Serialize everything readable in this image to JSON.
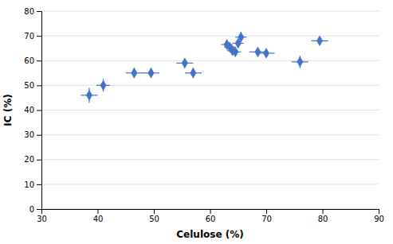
{
  "chart_data": {
    "type": "scatter",
    "x": [
      38.5,
      41.0,
      46.5,
      49.5,
      55.5,
      57.0,
      63.0,
      63.5,
      64.0,
      64.5,
      65.0,
      65.5,
      68.5,
      70.0,
      76.0,
      79.5
    ],
    "values": [
      46.0,
      50.0,
      55.0,
      55.0,
      59.0,
      55.0,
      66.5,
      65.5,
      64.0,
      63.5,
      67.0,
      69.5,
      63.5,
      63.0,
      59.5,
      68.0
    ],
    "xerr": [
      1.5,
      1.2,
      1.5,
      1.5,
      1.5,
      1.5,
      1.0,
      1.0,
      1.0,
      1.0,
      1.0,
      1.0,
      1.5,
      1.5,
      1.5,
      1.5
    ],
    "yerr": [
      3.0,
      2.5,
      2.0,
      2.0,
      2.0,
      2.0,
      1.5,
      1.5,
      1.5,
      1.5,
      1.5,
      2.0,
      1.5,
      1.5,
      2.5,
      1.5
    ],
    "color": "#4472C4",
    "marker": "diamond",
    "xlabel": "Celulose (%)",
    "ylabel": "IC (%)",
    "xlim": [
      30,
      90
    ],
    "ylim": [
      0,
      80
    ],
    "xticks": [
      30,
      40,
      50,
      60,
      70,
      80,
      90
    ],
    "yticks": [
      0,
      10,
      20,
      30,
      40,
      50,
      60,
      70,
      80
    ],
    "grid": true
  }
}
